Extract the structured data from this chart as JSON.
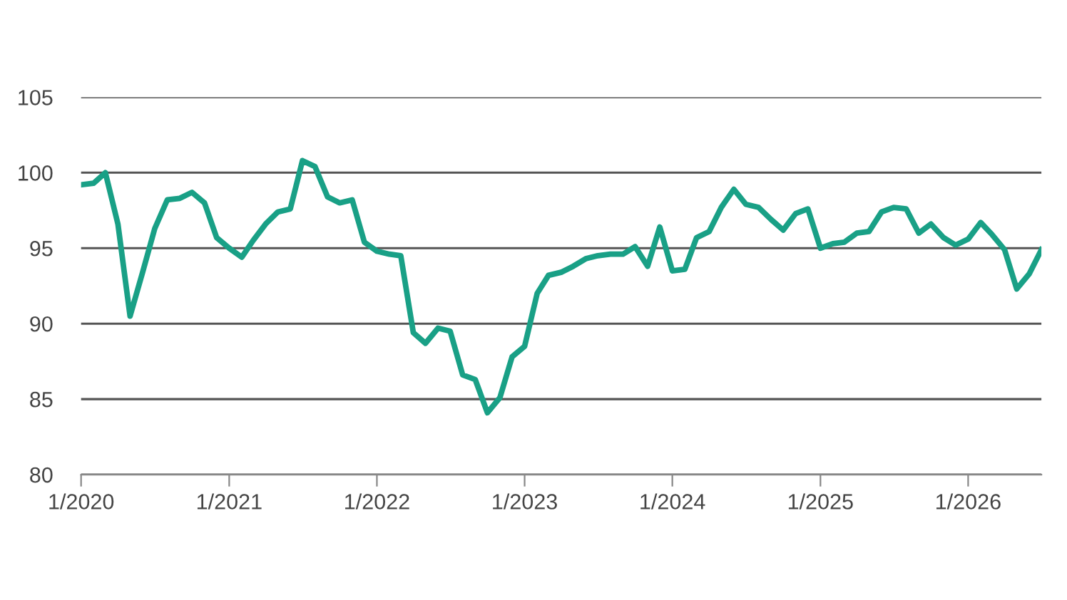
{
  "chart_data": {
    "type": "line",
    "x": [
      "2020-01",
      "2020-02",
      "2020-03",
      "2020-04",
      "2020-05",
      "2020-06",
      "2020-07",
      "2020-08",
      "2020-09",
      "2020-10",
      "2020-11",
      "2020-12",
      "2021-01",
      "2021-02",
      "2021-03",
      "2021-04",
      "2021-05",
      "2021-06",
      "2021-07",
      "2021-08",
      "2021-09",
      "2021-10",
      "2021-11",
      "2021-12",
      "2022-01",
      "2022-02",
      "2022-03",
      "2022-04",
      "2022-05",
      "2022-06",
      "2022-07",
      "2022-08",
      "2022-09",
      "2022-10",
      "2022-11",
      "2022-12",
      "2023-01",
      "2023-02",
      "2023-03",
      "2023-04",
      "2023-05",
      "2023-06",
      "2023-07",
      "2023-08",
      "2023-09",
      "2023-10",
      "2023-11",
      "2023-12",
      "2024-01",
      "2024-02",
      "2024-03",
      "2024-04",
      "2024-05",
      "2024-06",
      "2024-07",
      "2024-08",
      "2024-09",
      "2024-10",
      "2024-11",
      "2024-12",
      "2025-01",
      "2025-02",
      "2025-03",
      "2025-04",
      "2025-05",
      "2025-06",
      "2025-07",
      "2025-08",
      "2025-09",
      "2025-10",
      "2025-11",
      "2025-12",
      "2026-01",
      "2026-02",
      "2026-03",
      "2026-04",
      "2026-05",
      "2026-06",
      "2026-07"
    ],
    "series": [
      {
        "color": "#19a086",
        "values": [
          99.2,
          99.3,
          100.0,
          96.6,
          90.5,
          93.4,
          96.3,
          98.2,
          98.3,
          98.7,
          98.0,
          95.7,
          95.0,
          94.4,
          95.5,
          96.6,
          97.4,
          97.6,
          100.8,
          100.4,
          98.4,
          98.0,
          98.2,
          95.4,
          94.8,
          94.6,
          94.5,
          89.4,
          88.7,
          89.7,
          89.5,
          86.6,
          86.3,
          84.1,
          85.1,
          87.8,
          88.5,
          92.0,
          93.2,
          93.4,
          93.8,
          94.3,
          94.5,
          94.6,
          94.6,
          95.1,
          93.8,
          96.4,
          93.5,
          93.6,
          95.7,
          96.1,
          97.7,
          98.9,
          97.9,
          97.7,
          96.9,
          96.2,
          97.3,
          97.6,
          95.0,
          95.3,
          95.4,
          96.0,
          96.1,
          97.4,
          97.7,
          97.6,
          96.0,
          96.6,
          95.7,
          95.2,
          95.6,
          96.7,
          95.9,
          94.9,
          92.3,
          93.3,
          94.9
        ]
      }
    ],
    "xlim": [
      "2020-01",
      "2026-07"
    ],
    "xticks": [
      {
        "value": "2020-01",
        "label": "1/2020"
      },
      {
        "value": "2021-01",
        "label": "1/2021"
      },
      {
        "value": "2022-01",
        "label": "1/2022"
      },
      {
        "value": "2023-01",
        "label": "1/2023"
      },
      {
        "value": "2024-01",
        "label": "1/2024"
      },
      {
        "value": "2025-01",
        "label": "1/2025"
      },
      {
        "value": "2026-01",
        "label": "1/2026"
      }
    ],
    "ylim": [
      80,
      105
    ],
    "yticks": [
      80,
      85,
      90,
      95,
      100,
      105
    ],
    "grid": "y",
    "marker": "none",
    "line_style": "solid"
  }
}
